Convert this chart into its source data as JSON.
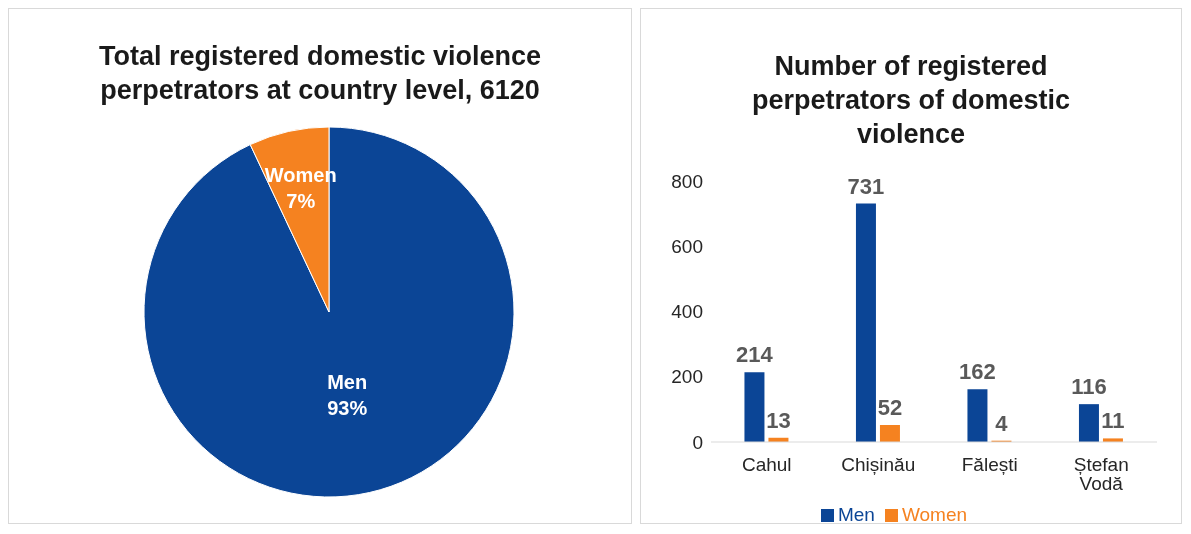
{
  "chart_data": [
    {
      "type": "pie",
      "title": "Total registered domestic violence perpetrators at country level, 6120",
      "categories": [
        "Men",
        "Women"
      ],
      "values": [
        93,
        7
      ],
      "value_labels": [
        "93%",
        "7%"
      ],
      "colors": [
        "#0b4596",
        "#f58220"
      ],
      "data_labels": true
    },
    {
      "type": "bar",
      "title": "Number of registered perpetrators of domestic violence",
      "categories": [
        "Cahul",
        "Chișinău",
        "Fălești",
        "Ștefan Vodă"
      ],
      "series": [
        {
          "name": "Men",
          "color": "#0b4596",
          "values": [
            214,
            731,
            162,
            116
          ]
        },
        {
          "name": "Women",
          "color": "#f58220",
          "values": [
            13,
            52,
            4,
            11
          ]
        }
      ],
      "ylim": [
        0,
        800
      ],
      "yticks": [
        0,
        200,
        400,
        600,
        800
      ],
      "data_labels": true,
      "legend": "bottom",
      "grid": false
    }
  ]
}
